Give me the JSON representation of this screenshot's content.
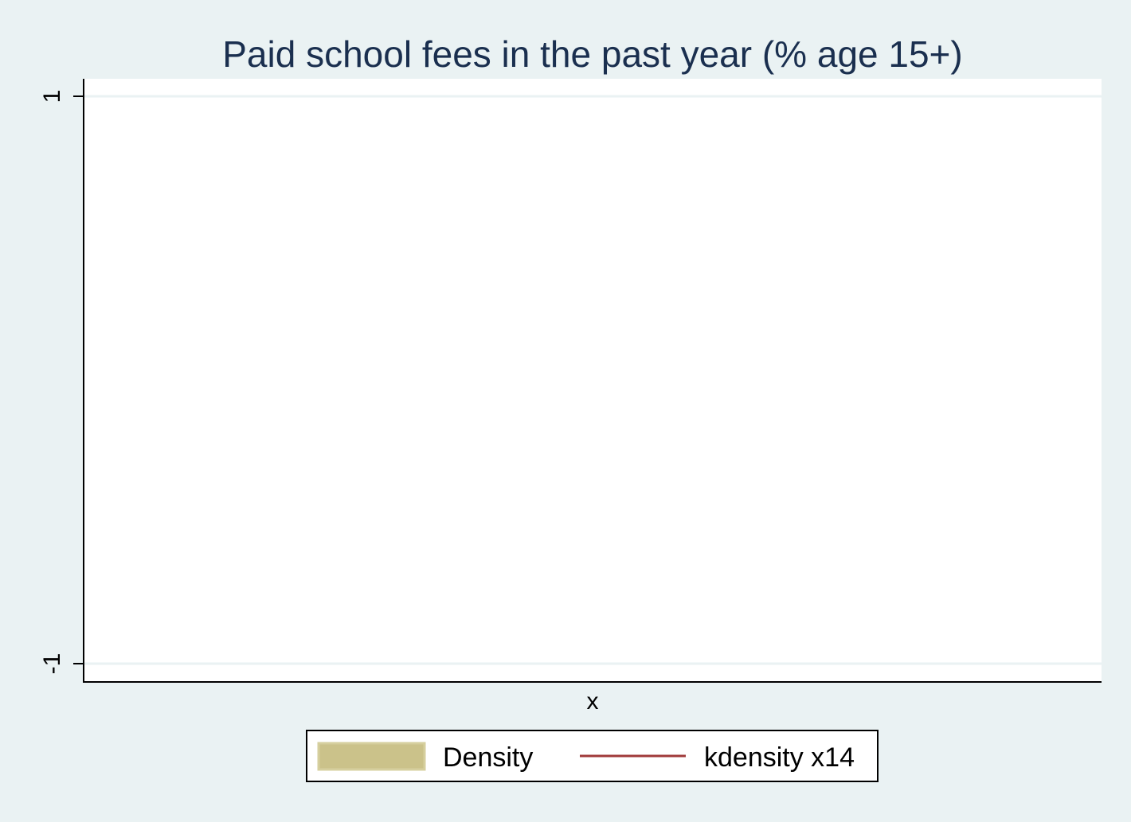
{
  "chart_data": {
    "type": "area",
    "title": "Paid school fees in the past year (% age 15+)",
    "xlabel": "x",
    "ylabel": "",
    "y_ticks": [
      "1",
      "-1"
    ],
    "ylim": [
      -1,
      1
    ],
    "grid": true,
    "series": [
      {
        "name": "Density",
        "values": []
      },
      {
        "name": "kdensity x14",
        "values": []
      }
    ],
    "legend_position": "bottom",
    "colors": {
      "background": "#eaf2f3",
      "plot_area": "#ffffff",
      "gridline": "#eaf2f3",
      "title": "#1a2f4f",
      "density_fill": "#cbc28a",
      "kdensity_line": "#a03a3a"
    }
  }
}
